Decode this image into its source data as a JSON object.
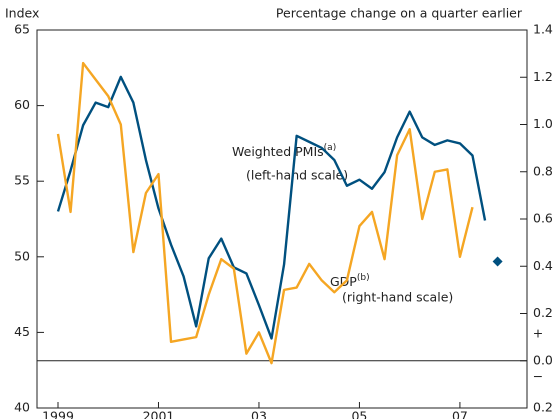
{
  "chart_data": {
    "type": "line",
    "y_axis_title": "Index",
    "y2_axis_title": "Percentage change on a quarter earlier",
    "categories": [
      "1999",
      null,
      null,
      null,
      null,
      null,
      null,
      null,
      "2001",
      null,
      null,
      null,
      null,
      null,
      null,
      null,
      "03",
      null,
      null,
      null,
      null,
      null,
      null,
      null,
      "05",
      null,
      null,
      null,
      null,
      null,
      null,
      null,
      "07",
      null,
      null,
      null
    ],
    "series": [
      {
        "color": "#00507f",
        "axis": "y",
        "values": [
          53.0,
          55.7,
          58.7,
          60.2,
          59.9,
          61.9,
          60.2,
          56.4,
          53.2,
          50.8,
          48.7,
          45.4,
          49.9,
          51.2,
          49.3,
          48.9,
          46.8,
          44.6,
          49.5,
          58.0,
          57.6,
          57.2,
          56.4,
          54.7,
          55.1,
          54.5,
          55.6,
          57.9,
          59.6,
          57.9,
          57.4,
          57.7,
          57.5,
          56.7,
          52.4,
          null
        ]
      },
      {
        "color": "#f5a623",
        "axis": "y2",
        "values": [
          0.96,
          0.63,
          1.26,
          1.19,
          1.12,
          1.0,
          0.46,
          0.71,
          0.79,
          0.08,
          0.09,
          0.1,
          0.28,
          0.43,
          0.39,
          0.03,
          0.12,
          -0.01,
          0.3,
          0.31,
          0.41,
          0.34,
          0.29,
          0.34,
          0.57,
          0.63,
          0.43,
          0.87,
          0.98,
          0.6,
          0.8,
          0.81,
          0.44,
          0.65,
          null,
          null
        ]
      },
      {
        "color": "#00507f",
        "axis": "y2",
        "marker": "diamond",
        "values": [
          null,
          null,
          null,
          null,
          null,
          null,
          null,
          null,
          null,
          null,
          null,
          null,
          null,
          null,
          null,
          null,
          null,
          null,
          null,
          null,
          null,
          null,
          null,
          null,
          null,
          null,
          null,
          null,
          null,
          null,
          null,
          null,
          null,
          null,
          null,
          0.42
        ]
      }
    ],
    "ylim": [
      40,
      65
    ],
    "yticks": [
      40,
      45,
      50,
      55,
      60,
      65
    ],
    "y2lim": [
      -0.2,
      1.4
    ],
    "y2ticks": [
      {
        "value": -0.2,
        "label": "0.2"
      },
      {
        "value": 0.0,
        "label": "0.0"
      },
      0.2,
      0.4,
      0.6,
      0.8,
      {
        "value": 1.0,
        "label": "1.0"
      },
      1.2,
      1.4
    ],
    "sign_labels": [
      "+",
      "−"
    ],
    "annotations": [
      {
        "text": "Weighted PMIs",
        "superscript": "(a)"
      },
      {
        "text": "(left-hand scale)"
      },
      {
        "text": "GDP",
        "superscript": "(b)"
      },
      {
        "text": "(right-hand scale)"
      }
    ]
  }
}
